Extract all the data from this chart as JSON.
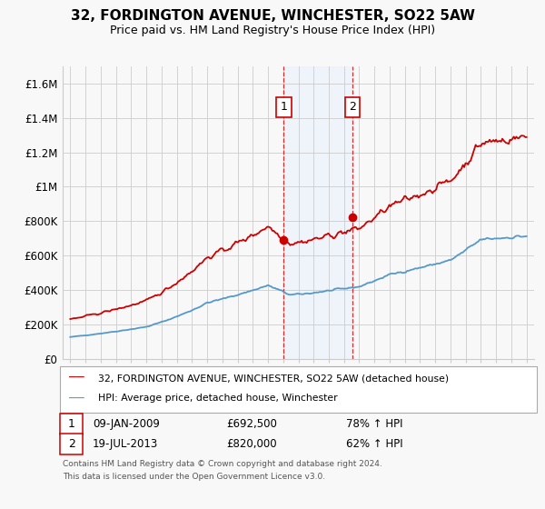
{
  "title": "32, FORDINGTON AVENUE, WINCHESTER, SO22 5AW",
  "subtitle": "Price paid vs. HM Land Registry's House Price Index (HPI)",
  "legend_line1": "32, FORDINGTON AVENUE, WINCHESTER, SO22 5AW (detached house)",
  "legend_line2": "HPI: Average price, detached house, Winchester",
  "annotation1_label": "1",
  "annotation1_date": "09-JAN-2009",
  "annotation1_price": "£692,500",
  "annotation1_hpi": "78% ↑ HPI",
  "annotation1_year": 2009.03,
  "annotation1_value": 692500,
  "annotation2_label": "2",
  "annotation2_date": "19-JUL-2013",
  "annotation2_price": "£820,000",
  "annotation2_hpi": "62% ↑ HPI",
  "annotation2_year": 2013.55,
  "annotation2_value": 820000,
  "shade_xmin": 2009.03,
  "shade_xmax": 2013.55,
  "red_line_color": "#cc0000",
  "blue_line_color": "#5599cc",
  "shade_color": "#ddeeff",
  "grid_color": "#cccccc",
  "background_color": "#f8f8f8",
  "ylim_min": 0,
  "ylim_max": 1700000,
  "yticks": [
    0,
    200000,
    400000,
    600000,
    800000,
    1000000,
    1200000,
    1400000,
    1600000
  ],
  "xlim_min": 1994.5,
  "xlim_max": 2025.5,
  "footnote_line1": "Contains HM Land Registry data © Crown copyright and database right 2024.",
  "footnote_line2": "This data is licensed under the Open Government Licence v3.0."
}
